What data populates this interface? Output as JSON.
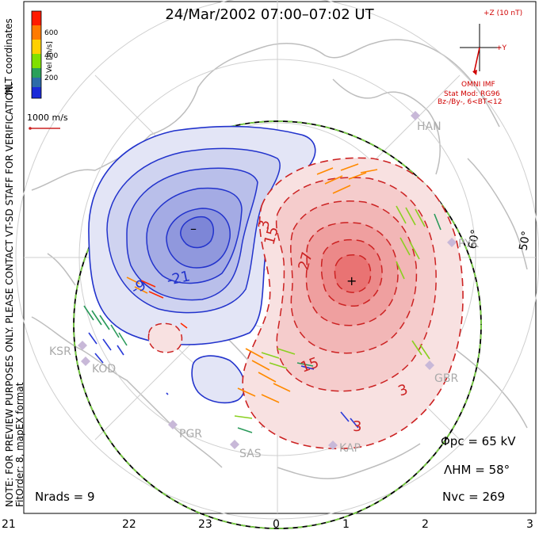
{
  "title": "24/Mar/2002 07:00–07:02 UT",
  "side_note": "NOTE: FOR PREVIEW PURPOSES ONLY. PLEASE CONTACT VT-SD STAFF FOR VERIFICATION.",
  "fit_order": "FitOrder: 8, mapEX format",
  "coord_label": "MLT coordinates",
  "colorbar": {
    "label": "Vel [m/s]",
    "ticks": [
      "600",
      "400",
      "200"
    ],
    "colors": [
      "#ff0000",
      "#ff7a00",
      "#ffd000",
      "#80e000",
      "#2aa05a",
      "#2d6ca8",
      "#1a2ad8"
    ]
  },
  "vector_scale": "1000 m/s",
  "imf": {
    "bz": "+Z (10 nT)",
    "by": "+Y",
    "source": "OMNI IMF",
    "model": "Stat Mod: RG96",
    "params": "Bz-/By-, 6<BT<12"
  },
  "contours": {
    "neg_labels": [
      "-21",
      "-9"
    ],
    "pos_labels": [
      "3",
      "15",
      "27",
      "15",
      "3",
      "3"
    ],
    "min_mark": "–",
    "max_mark": "+"
  },
  "latitude_labels": [
    "60°",
    "50°"
  ],
  "stations": [
    "HAN",
    "KSR",
    "KOD",
    "PGR",
    "SAS",
    "KAP",
    "GBR",
    "PYK"
  ],
  "stats": {
    "phi_pc": "Φpc = 65 kV",
    "lambda_hm": "ΛHM = 58°",
    "n_vc": "Nvc = 269",
    "n_rads": "Nrads = 9"
  },
  "mlt_ticks": [
    "21",
    "22",
    "23",
    "0",
    "1",
    "2",
    "3"
  ],
  "colors": {
    "negative": "#2233cc",
    "positive": "#cc2222",
    "land": "#b8b8b8",
    "boundary_green": "#7ad044",
    "imf": "#d00000"
  }
}
